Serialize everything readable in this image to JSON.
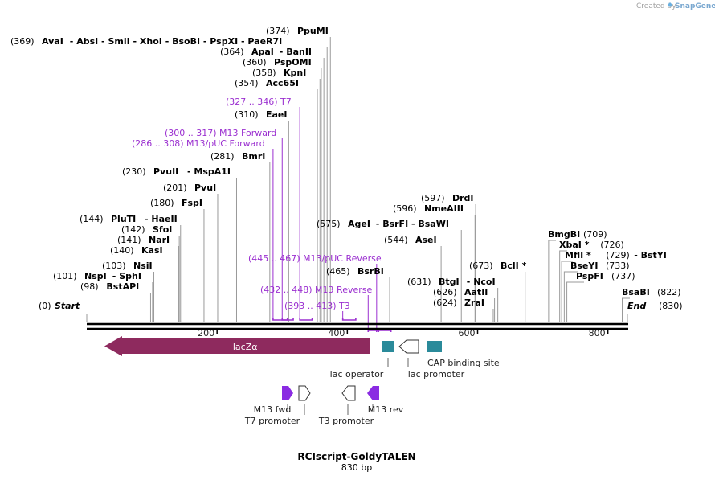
{
  "credit": {
    "text": "Created by",
    "brand": "SnapGene"
  },
  "plasmid": {
    "name": "RCIscript-GoldyTALEN",
    "length_label": "830 bp",
    "length": 830
  },
  "axis": {
    "ticks": [
      200,
      400,
      600,
      800
    ]
  },
  "ends": [
    {
      "num": "(0)",
      "name": "Start",
      "pos": 0
    },
    {
      "num": "(830)",
      "name": "End",
      "pos": 830
    }
  ],
  "sites": [
    {
      "num": "(98)",
      "name": "BstAPI",
      "pos": 98
    },
    {
      "num": "(101)",
      "name": "NspI",
      "extra": "SphI",
      "pos": 101
    },
    {
      "num": "(103)",
      "name": "NsiI",
      "pos": 103
    },
    {
      "num": "(140)",
      "name": "KasI",
      "pos": 140
    },
    {
      "num": "(141)",
      "name": "NarI",
      "pos": 141
    },
    {
      "num": "(142)",
      "name": "SfoI",
      "pos": 142
    },
    {
      "num": "(144)",
      "name": "PluTI",
      "extra": "HaeII",
      "pos": 144
    },
    {
      "num": "(180)",
      "name": "FspI",
      "pos": 180
    },
    {
      "num": "(201)",
      "name": "PvuI",
      "pos": 201
    },
    {
      "num": "(230)",
      "name": "PvuII",
      "extra": "MspA1I",
      "pos": 230
    },
    {
      "num": "(281)",
      "name": "BmrI",
      "pos": 281
    },
    {
      "num": "(310)",
      "name": "EaeI",
      "pos": 310
    },
    {
      "num": "(354)",
      "name": "Acc65I",
      "pos": 354
    },
    {
      "num": "(358)",
      "name": "KpnI",
      "pos": 358
    },
    {
      "num": "(360)",
      "name": "PspOMI",
      "pos": 360
    },
    {
      "num": "(364)",
      "name": "ApaI",
      "extra": "BanII",
      "pos": 364
    },
    {
      "num": "(369)",
      "name": "AvaI",
      "extra": "AbsI - SmlI - XhoI - BsoBI - PspXI - PaeR7I",
      "pos": 369
    },
    {
      "num": "(374)",
      "name": "PpuMI",
      "pos": 374
    },
    {
      "num": "(465)",
      "name": "BsrBI",
      "pos": 465
    },
    {
      "num": "(544)",
      "name": "AseI",
      "pos": 544
    },
    {
      "num": "(575)",
      "name": "AgeI",
      "extra": "BsrFI - BsaWI",
      "pos": 575
    },
    {
      "num": "(596)",
      "name": "NmeAIII",
      "pos": 596
    },
    {
      "num": "(597)",
      "name": "DrdI",
      "pos": 597
    },
    {
      "num": "(624)",
      "name": "ZraI",
      "pos": 624
    },
    {
      "num": "(626)",
      "name": "AatII",
      "pos": 626
    },
    {
      "num": "(631)",
      "name": "BtgI",
      "extra": "NcoI",
      "pos": 631
    },
    {
      "num": "(673)",
      "name": "BclI *",
      "pos": 673
    },
    {
      "num": "(709)",
      "name": "BmgBI",
      "pos": 709
    },
    {
      "num": "(726)",
      "name": "XbaI *",
      "pos": 726
    },
    {
      "num": "(729)",
      "name": "MflI *",
      "extra": "BstYI",
      "pos": 729
    },
    {
      "num": "(733)",
      "name": "BseYI",
      "pos": 733
    },
    {
      "num": "(737)",
      "name": "PspFI",
      "pos": 737
    },
    {
      "num": "(822)",
      "name": "BsaBI",
      "pos": 822
    }
  ],
  "primers": [
    {
      "label": "(286 .. 308)  M13/pUC Forward",
      "start": 286,
      "end": 308
    },
    {
      "label": "(300 .. 317)  M13 Forward",
      "start": 300,
      "end": 317
    },
    {
      "label": "(327 .. 346)  T7",
      "start": 327,
      "end": 346
    },
    {
      "label": "(393 .. 413)  T3",
      "start": 393,
      "end": 413
    },
    {
      "label": "(432 .. 448)  M13 Reverse",
      "start": 432,
      "end": 448
    },
    {
      "label": "(445 .. 467)  M13/pUC Reverse",
      "start": 445,
      "end": 467
    }
  ],
  "features": {
    "lacZ": {
      "label": "lacZα",
      "start": 0,
      "end": 437,
      "color": "#8e2a5e"
    },
    "lac_operator": {
      "label": "lac operator",
      "start": 457,
      "end": 474,
      "color": "#2a8a9a"
    },
    "lac_promoter": {
      "label": "lac promoter",
      "start": 482,
      "end": 512
    },
    "cap_site": {
      "label": "CAP binding site",
      "start": 527,
      "end": 549,
      "color": "#2a8a9a"
    },
    "m13_fwd": {
      "label": "M13 fwd",
      "start": 300,
      "end": 317,
      "color": "#8a2be2"
    },
    "t7_promoter": {
      "label": "T7 promoter",
      "start": 327,
      "end": 346
    },
    "t3_promoter": {
      "label": "T3 promoter",
      "start": 393,
      "end": 413
    },
    "m13_rev": {
      "label": "M13 rev",
      "start": 432,
      "end": 448,
      "color": "#8a2be2"
    }
  }
}
